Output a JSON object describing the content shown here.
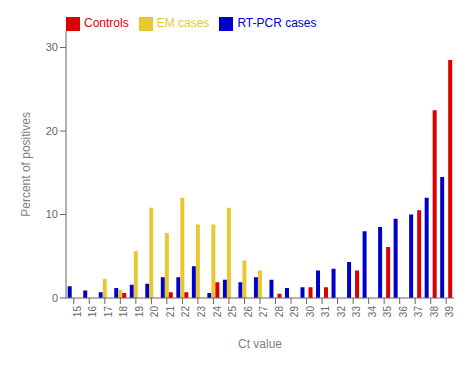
{
  "chart_data": {
    "type": "bar",
    "xlabel": "Ct value",
    "ylabel": "Percent of positives",
    "categories": [
      "15",
      "16",
      "17",
      "18",
      "19",
      "20",
      "21",
      "22",
      "23",
      "24",
      "25",
      "26",
      "27",
      "28",
      "29",
      "30",
      "31",
      "32",
      "33",
      "34",
      "35",
      "36",
      "37",
      "38",
      "39"
    ],
    "series": [
      {
        "name": "RT-PCR cases",
        "color": "#0000cc",
        "values": [
          1.4,
          0.9,
          0.7,
          1.2,
          1.6,
          1.7,
          2.5,
          2.5,
          3.8,
          0.6,
          2.2,
          1.9,
          2.5,
          2.2,
          1.2,
          1.3,
          3.3,
          3.5,
          4.3,
          8.0,
          8.5,
          9.5,
          10.0,
          12.0,
          14.5
        ]
      },
      {
        "name": "EM cases",
        "color": "#e8c832",
        "values": [
          0.0,
          0.0,
          2.3,
          1.0,
          5.6,
          10.8,
          7.8,
          12.0,
          8.8,
          8.8,
          10.8,
          4.5,
          3.3,
          0.0,
          0.0,
          0.0,
          0.0,
          0.0,
          0.0,
          0.0,
          0.0,
          0.0,
          0.0,
          0.0,
          0.0
        ]
      },
      {
        "name": "Controls",
        "color": "#dd0000",
        "values": [
          0.0,
          0.0,
          0.0,
          0.6,
          0.0,
          0.0,
          0.7,
          0.7,
          0.0,
          1.9,
          0.0,
          0.0,
          0.0,
          0.5,
          0.0,
          1.3,
          1.3,
          0.0,
          3.3,
          0.0,
          6.1,
          0.0,
          10.5,
          22.5,
          28.5
        ]
      }
    ],
    "ylim": [
      0,
      32
    ],
    "yticks": [
      0,
      10,
      20,
      30
    ],
    "grid": false,
    "legend": "upper left"
  }
}
